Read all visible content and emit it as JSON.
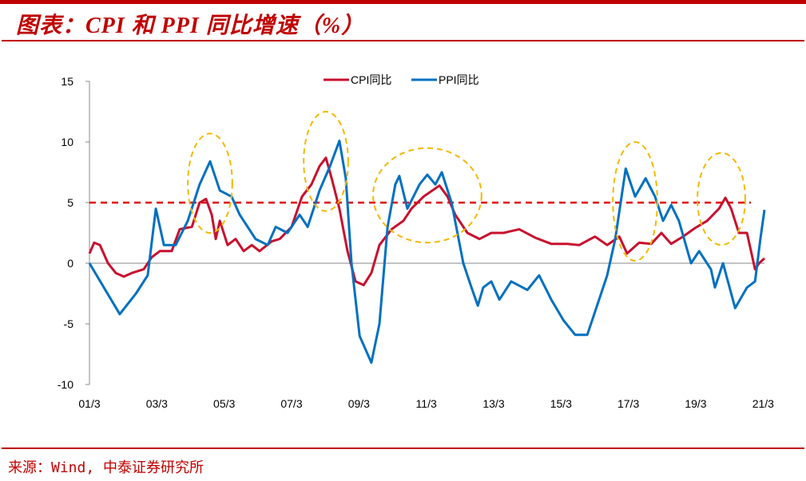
{
  "header": {
    "title": "图表：CPI 和 PPI 同比增速（%）"
  },
  "footer": {
    "source": "来源：Wind, 中泰证券研究所"
  },
  "chart_data": {
    "type": "line",
    "title": "图表：CPI 和 PPI 同比增速（%）",
    "xlabel": "",
    "ylabel": "",
    "ylim": [
      -10,
      15
    ],
    "yticks": [
      "15",
      "10",
      "5",
      "0",
      "-5",
      "-10"
    ],
    "ytick_values": [
      15,
      10,
      5,
      0,
      -5,
      -10
    ],
    "xlim": [
      2001.17,
      2021.21
    ],
    "xticks": [
      "01/3",
      "03/3",
      "05/3",
      "07/3",
      "09/3",
      "11/3",
      "13/3",
      "15/3",
      "17/3",
      "19/3",
      "21/3"
    ],
    "xtick_values": [
      2001.17,
      2003.17,
      2005.17,
      2007.17,
      2009.17,
      2011.17,
      2013.17,
      2015.17,
      2017.17,
      2019.17,
      2021.17
    ],
    "legend_position": "top-center",
    "grid": false,
    "reference_line": {
      "value": 5,
      "color": "#e00000",
      "style": "dashed"
    },
    "series": [
      {
        "name": "CPI同比",
        "color": "#c8102e",
        "x": [
          2001.17,
          2001.31,
          2001.48,
          2001.72,
          2001.95,
          2002.19,
          2002.43,
          2002.78,
          2003.02,
          2003.26,
          2003.61,
          2003.85,
          2004.21,
          2004.44,
          2004.63,
          2004.8,
          2004.92,
          2005.04,
          2005.27,
          2005.51,
          2005.75,
          2005.99,
          2006.22,
          2006.58,
          2006.82,
          2007.17,
          2007.48,
          2007.76,
          2008.0,
          2008.19,
          2008.36,
          2008.59,
          2008.83,
          2009.07,
          2009.31,
          2009.54,
          2009.78,
          2010.14,
          2010.49,
          2010.73,
          2011.09,
          2011.56,
          2011.8,
          2012.03,
          2012.39,
          2012.75,
          2013.1,
          2013.46,
          2013.93,
          2014.41,
          2014.88,
          2015.36,
          2015.71,
          2016.18,
          2016.54,
          2016.9,
          2017.13,
          2017.49,
          2017.85,
          2018.15,
          2018.44,
          2018.79,
          2019.15,
          2019.51,
          2019.86,
          2020.05,
          2020.22,
          2020.45,
          2020.69,
          2020.93,
          2021.05,
          2021.21
        ],
        "values": [
          0.8,
          1.7,
          1.5,
          0,
          -0.8,
          -1.1,
          -0.8,
          -0.5,
          0.5,
          1,
          1,
          2.8,
          3,
          5,
          5.3,
          4,
          2,
          3.5,
          1.5,
          2,
          1,
          1.5,
          1,
          1.8,
          2,
          3,
          5.5,
          6.5,
          8,
          8.7,
          7,
          4.5,
          1,
          -1.5,
          -1.8,
          -0.8,
          1.5,
          2.8,
          3.5,
          4.5,
          5.5,
          6.4,
          5.5,
          4,
          2.5,
          2,
          2.5,
          2.5,
          2.8,
          2.1,
          1.6,
          1.6,
          1.5,
          2.2,
          1.5,
          2.2,
          0.8,
          1.7,
          1.6,
          2.5,
          1.6,
          2.2,
          2.9,
          3.5,
          4.5,
          5.4,
          4.5,
          2.5,
          2.5,
          -0.5,
          0,
          0.4
        ]
      },
      {
        "name": "PPI同比",
        "color": "#0070c0",
        "x": [
          2001.17,
          2002.07,
          2002.55,
          2002.9,
          2003.14,
          2003.38,
          2003.73,
          2004.09,
          2004.44,
          2004.75,
          2005.04,
          2005.39,
          2005.63,
          2006.1,
          2006.46,
          2006.7,
          2007.05,
          2007.41,
          2007.65,
          2008.0,
          2008.31,
          2008.59,
          2008.78,
          2008.95,
          2009.19,
          2009.54,
          2009.78,
          2010.02,
          2010.25,
          2010.37,
          2010.61,
          2010.97,
          2011.2,
          2011.44,
          2011.63,
          2011.92,
          2012.27,
          2012.51,
          2012.7,
          2012.86,
          2013.1,
          2013.34,
          2013.69,
          2014.17,
          2014.52,
          2014.88,
          2015.24,
          2015.59,
          2015.95,
          2016.18,
          2016.54,
          2016.78,
          2017.09,
          2017.37,
          2017.68,
          2017.96,
          2018.2,
          2018.44,
          2018.67,
          2019.03,
          2019.27,
          2019.62,
          2019.74,
          2019.98,
          2020.34,
          2020.69,
          2020.93,
          2021.09,
          2021.21
        ],
        "values": [
          0,
          -4.2,
          -2.5,
          -1,
          4.5,
          1.5,
          1.5,
          3.5,
          6.5,
          8.4,
          6,
          5.5,
          4,
          2,
          1.5,
          3,
          2.5,
          4,
          3,
          6,
          8,
          10.1,
          7,
          0,
          -6,
          -8.2,
          -5,
          3,
          6.5,
          7.2,
          4.5,
          6.5,
          7.3,
          6.5,
          7.5,
          5,
          0,
          -2,
          -3.5,
          -2,
          -1.5,
          -3,
          -1.5,
          -2.2,
          -1,
          -3,
          -4.7,
          -5.9,
          -5.9,
          -4,
          -1,
          2,
          7.8,
          5.5,
          7,
          5.5,
          3.5,
          4.8,
          3.5,
          0,
          1,
          -0.5,
          -2,
          0,
          -3.7,
          -2,
          -1.5,
          2,
          4.4
        ]
      }
    ],
    "annotations": [
      {
        "type": "ellipse",
        "style": "dashed",
        "color": "#f5b800",
        "cx": 2004.75,
        "cy": 6.6,
        "rx": 0.66,
        "ry": 4.1
      },
      {
        "type": "ellipse",
        "style": "dashed",
        "color": "#f5b800",
        "cx": 2008.19,
        "cy": 8.4,
        "rx": 0.66,
        "ry": 4.1
      },
      {
        "type": "ellipse",
        "style": "dashed",
        "color": "#f5b800",
        "cx": 2011.2,
        "cy": 5.6,
        "rx": 1.61,
        "ry": 3.9
      },
      {
        "type": "ellipse",
        "style": "dashed",
        "color": "#f5b800",
        "cx": 2017.37,
        "cy": 5.1,
        "rx": 0.66,
        "ry": 4.9
      },
      {
        "type": "ellipse",
        "style": "dashed",
        "color": "#f5b800",
        "cx": 2019.93,
        "cy": 5.3,
        "rx": 0.71,
        "ry": 3.8
      }
    ]
  }
}
